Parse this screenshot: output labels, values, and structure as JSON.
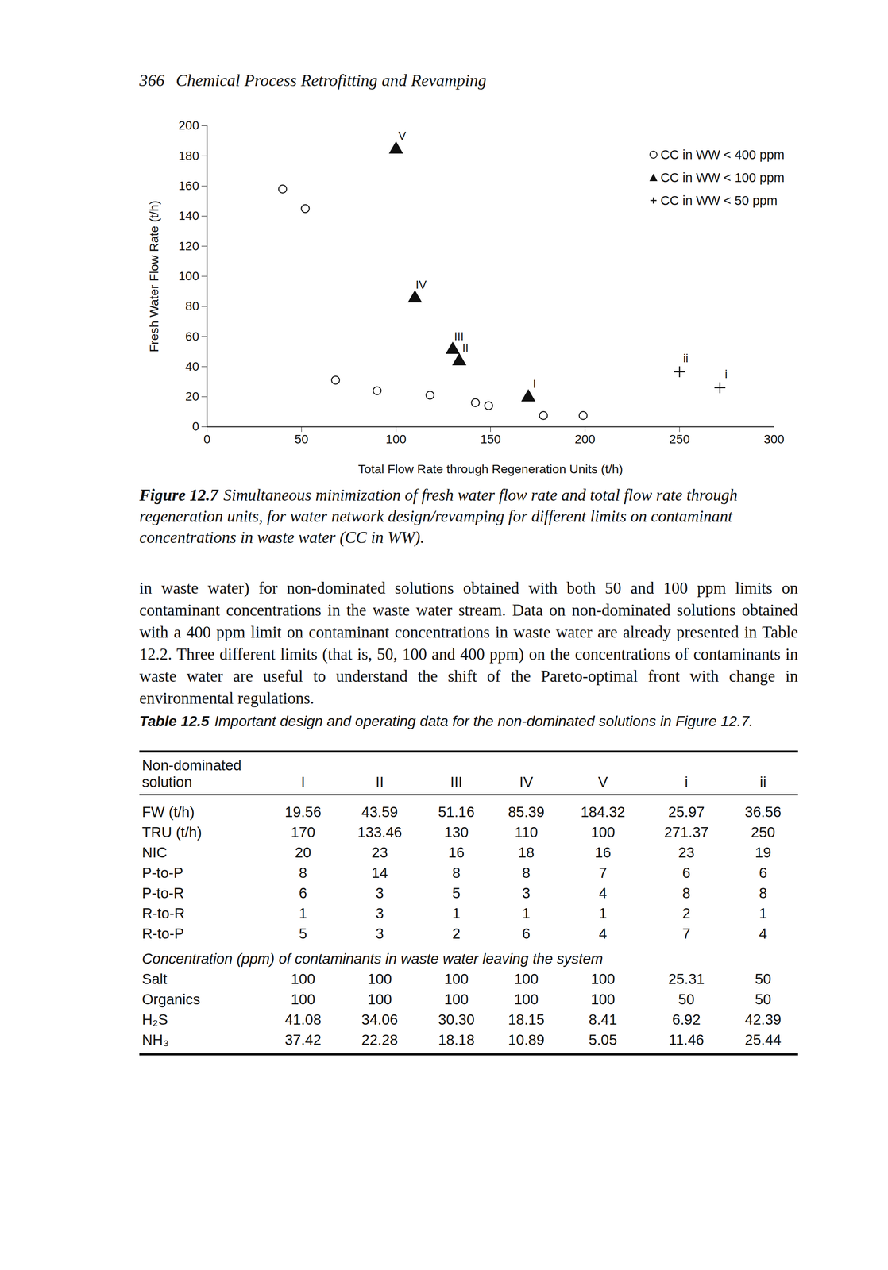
{
  "header": {
    "page": "366",
    "title": "Chemical Process Retrofitting and Revamping"
  },
  "chart_data": {
    "type": "scatter",
    "x_label": "Total Flow Rate through Regeneration Units (t/h)",
    "y_label": "Fresh Water Flow Rate (t/h)",
    "xlim": [
      0,
      300
    ],
    "xticks": [
      0,
      50,
      100,
      150,
      200,
      250,
      300
    ],
    "ylim": [
      0,
      200
    ],
    "yticks": [
      0,
      20,
      40,
      60,
      80,
      100,
      120,
      140,
      160,
      180,
      200
    ],
    "grid": false,
    "legend": "upper right",
    "series": [
      {
        "name": "CC in WW < 400 ppm",
        "marker": "circle",
        "color": "#111111",
        "x": [
          40,
          52,
          68,
          90,
          118,
          142,
          149,
          178,
          199
        ],
        "y": [
          158,
          145,
          31,
          24,
          21,
          16,
          14,
          7.5,
          7.5
        ],
        "labels": [
          null,
          null,
          null,
          null,
          null,
          null,
          null,
          null,
          null
        ]
      },
      {
        "name": "CC in WW < 100 ppm",
        "marker": "triangle",
        "color": "#111111",
        "x": [
          170,
          133.46,
          130,
          110,
          100
        ],
        "y": [
          19.56,
          43.59,
          51.16,
          85.39,
          184.32
        ],
        "labels": [
          "I",
          "II",
          "III",
          "IV",
          "V"
        ]
      },
      {
        "name": "CC in WW < 50 ppm",
        "marker": "plus",
        "color": "#111111",
        "x": [
          271.37,
          250
        ],
        "y": [
          25.97,
          36.56
        ],
        "labels": [
          "i",
          "ii"
        ]
      }
    ]
  },
  "figure_caption": {
    "label": "Figure 12.7",
    "text": "Simultaneous minimization of fresh water flow rate and total flow rate through regeneration units, for water network design/revamping for different limits on contaminant concentrations in waste water (CC in WW)."
  },
  "paragraph": "in waste water) for non-dominated solutions obtained with both 50 and 100 ppm limits on contaminant concentrations in the waste water stream. Data on non-dominated solutions obtained with a 400 ppm limit on contaminant concentrations in waste water are already presented in Table 12.2. Three different limits (that is, 50, 100 and 400 ppm) on the concentrations of contaminants in waste water are useful to understand the shift of the Pareto-optimal front with change in environmental regulations.",
  "table": {
    "label": "Table 12.5",
    "caption": "Important design and operating data for the non-dominated solutions in Figure 12.7.",
    "columns": [
      "Non-dominated solution",
      "I",
      "II",
      "III",
      "IV",
      "V",
      "i",
      "ii"
    ],
    "rows": [
      [
        "FW (t/h)",
        "19.56",
        "43.59",
        "51.16",
        "85.39",
        "184.32",
        "25.97",
        "36.56"
      ],
      [
        "TRU (t/h)",
        "170",
        "133.46",
        "130",
        "110",
        "100",
        "271.37",
        "250"
      ],
      [
        "NIC",
        "20",
        "23",
        "16",
        "18",
        "16",
        "23",
        "19"
      ],
      [
        "P-to-P",
        "8",
        "14",
        "8",
        "8",
        "7",
        "6",
        "6"
      ],
      [
        "P-to-R",
        "6",
        "3",
        "5",
        "3",
        "4",
        "8",
        "8"
      ],
      [
        "R-to-R",
        "1",
        "3",
        "1",
        "1",
        "1",
        "2",
        "1"
      ],
      [
        "R-to-P",
        "5",
        "3",
        "2",
        "6",
        "4",
        "7",
        "4"
      ]
    ],
    "section": "Concentration (ppm) of contaminants in waste water leaving the system",
    "section_rows": [
      [
        "Salt",
        "100",
        "100",
        "100",
        "100",
        "100",
        "25.31",
        "50"
      ],
      [
        "Organics",
        "100",
        "100",
        "100",
        "100",
        "100",
        "50",
        "50"
      ],
      [
        "H₂S",
        "41.08",
        "34.06",
        "30.30",
        "18.15",
        "8.41",
        "6.92",
        "42.39"
      ],
      [
        "NH₃",
        "37.42",
        "22.28",
        "18.18",
        "10.89",
        "5.05",
        "11.46",
        "25.44"
      ]
    ]
  }
}
